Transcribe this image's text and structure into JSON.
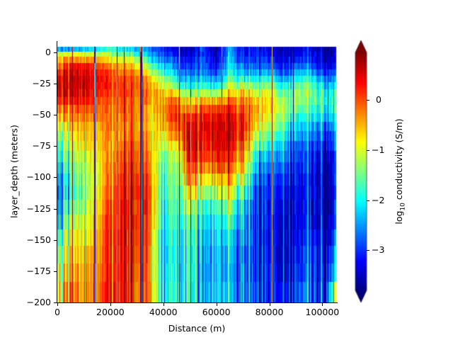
{
  "figure": {
    "background": "#ffffff"
  },
  "axes": {
    "xlabel": "Distance (m)",
    "ylabel": "layer_depth (meters)",
    "xlim": [
      0,
      105500
    ],
    "ylim": [
      -200,
      9
    ],
    "xticks": [
      {
        "value": 0,
        "label": "0"
      },
      {
        "value": 20000,
        "label": "20000"
      },
      {
        "value": 40000,
        "label": "40000"
      },
      {
        "value": 60000,
        "label": "60000"
      },
      {
        "value": 80000,
        "label": "80000"
      },
      {
        "value": 100000,
        "label": "100000"
      }
    ],
    "yticks": [
      {
        "value": 0,
        "label": "0"
      },
      {
        "value": -25,
        "label": "−25"
      },
      {
        "value": -50,
        "label": "−50"
      },
      {
        "value": -75,
        "label": "−75"
      },
      {
        "value": -100,
        "label": "−100"
      },
      {
        "value": -125,
        "label": "−125"
      },
      {
        "value": -150,
        "label": "−150"
      },
      {
        "value": -175,
        "label": "−175"
      },
      {
        "value": -200,
        "label": "−200"
      }
    ]
  },
  "colorbar": {
    "label": "log₁₀ conductivity (S/m)",
    "label_parts": {
      "pre": "log",
      "sub": "10",
      "post": " conductivity (S/m)"
    },
    "colormap": "jet",
    "vmin": -3.8,
    "vmax": 0.95,
    "extend": "both",
    "ticks": [
      {
        "value": 0,
        "label": "0"
      },
      {
        "value": -1,
        "label": "−1"
      },
      {
        "value": -2,
        "label": "−2"
      },
      {
        "value": -3,
        "label": "−3"
      }
    ],
    "under_color": "#00007f",
    "over_color": "#7f0000"
  },
  "chart_data": {
    "type": "heatmap",
    "title": "",
    "xlabel": "Distance (m)",
    "ylabel": "layer_depth (meters)",
    "colorbar_label": "log10 conductivity (S/m)",
    "xlim": [
      0,
      105500
    ],
    "ylim": [
      -200,
      9
    ],
    "clim": [
      -3.8,
      0.95
    ],
    "grid": false,
    "layer_tops_m": [
      4,
      0,
      -4,
      -9,
      -14,
      -19,
      -24,
      -30,
      -36,
      -42,
      -49,
      -56,
      -63,
      -71,
      -79,
      -88,
      -97,
      -107,
      -118,
      -130,
      -142,
      -155,
      -169,
      -184,
      -200
    ],
    "profile_x_m": [
      0,
      5000,
      10000,
      15000,
      20000,
      25000,
      30000,
      35000,
      40000,
      45000,
      50000,
      55000,
      60000,
      65000,
      70000,
      75000,
      80000,
      85000,
      90000,
      95000,
      100000,
      105000
    ],
    "profile_log10_sigma": [
      [
        -2.6,
        -1.2,
        -0.6,
        -0.3,
        0.1,
        0.3,
        0.4,
        0.3,
        0.0,
        -0.4,
        -0.8,
        -1.3,
        -1.7,
        -2.0,
        -2.3,
        -2.6,
        -2.8,
        -2.9,
        -2.8,
        -2.6,
        -2.2,
        -1.8,
        -1.5,
        -1.3
      ],
      [
        -2.4,
        -0.9,
        -0.2,
        0.3,
        0.5,
        0.6,
        0.6,
        0.5,
        0.3,
        0.0,
        -0.3,
        -0.6,
        -0.9,
        -1.1,
        -1.3,
        -1.5,
        -1.7,
        -1.8,
        -1.6,
        -1.2,
        -0.9,
        -0.6,
        -0.4,
        -0.2
      ],
      [
        -2.2,
        -1.0,
        -0.3,
        0.4,
        0.6,
        0.7,
        0.7,
        0.6,
        0.4,
        0.1,
        -0.1,
        -0.3,
        -0.5,
        -0.7,
        -0.9,
        -1.1,
        -1.2,
        -1.3,
        -1.1,
        -0.9,
        -0.7,
        -0.5,
        -0.3,
        -0.2
      ],
      [
        -2.0,
        -1.1,
        -0.4,
        0.2,
        0.4,
        0.5,
        0.4,
        0.3,
        0.1,
        -0.1,
        -0.2,
        -0.4,
        -0.5,
        -0.6,
        -0.7,
        -0.8,
        -0.8,
        -0.7,
        -0.6,
        -0.5,
        -0.4,
        -0.3,
        -0.2,
        -0.1
      ],
      [
        -1.8,
        -1.3,
        -0.8,
        -0.3,
        0.0,
        0.1,
        0.1,
        0.0,
        -0.1,
        -0.2,
        -0.3,
        -0.3,
        -0.4,
        -0.4,
        -0.4,
        -0.3,
        -0.2,
        -0.1,
        0.0,
        0.1,
        0.2,
        0.2,
        0.2,
        0.3
      ],
      [
        -2.1,
        -1.6,
        -1.0,
        -0.5,
        -0.2,
        0.0,
        0.1,
        0.1,
        0.0,
        -0.1,
        -0.2,
        -0.2,
        -0.2,
        -0.1,
        0.0,
        0.1,
        0.2,
        0.3,
        0.4,
        0.4,
        0.4,
        0.4,
        0.4,
        0.3
      ],
      [
        -2.3,
        -1.8,
        -1.2,
        -0.7,
        -0.3,
        -0.1,
        0.0,
        0.0,
        -0.1,
        -0.2,
        -0.2,
        -0.2,
        -0.1,
        0.0,
        0.1,
        0.2,
        0.3,
        0.4,
        0.4,
        0.4,
        0.3,
        0.3,
        0.2,
        0.1
      ],
      [
        -2.6,
        -2.4,
        -2.0,
        -1.5,
        -1.0,
        -0.6,
        -0.4,
        -0.3,
        -0.4,
        -0.6,
        -0.7,
        -0.7,
        -0.6,
        -0.5,
        -0.3,
        -0.2,
        -0.1,
        0.0,
        0.0,
        -0.1,
        -0.2,
        -0.3,
        -0.4,
        -0.3
      ],
      [
        -3.0,
        -2.8,
        -2.5,
        -2.1,
        -1.7,
        -1.2,
        -0.8,
        -0.4,
        -0.2,
        -0.1,
        -0.2,
        -0.4,
        -0.7,
        -1.0,
        -1.3,
        -1.5,
        -1.6,
        -1.7,
        -1.8,
        -1.9,
        -2.0,
        -2.0,
        -2.0,
        -1.9
      ],
      [
        -3.4,
        -3.2,
        -3.0,
        -2.7,
        -2.4,
        -2.0,
        -1.5,
        -0.8,
        -0.2,
        0.1,
        0.2,
        0.0,
        -0.3,
        -0.8,
        -1.2,
        -1.4,
        -1.5,
        -1.6,
        -1.7,
        -1.8,
        -1.9,
        -2.0,
        -2.0,
        -1.9
      ],
      [
        -3.6,
        -3.5,
        -3.3,
        -3.1,
        -2.8,
        -2.5,
        -2.2,
        -1.6,
        -1.0,
        -0.5,
        0.1,
        0.4,
        0.5,
        0.5,
        0.3,
        0.0,
        -0.4,
        -0.9,
        -1.4,
        -1.7,
        -1.9,
        -2.0,
        -2.0,
        -2.0
      ],
      [
        -2.8,
        -2.8,
        -2.7,
        -2.6,
        -2.4,
        -2.1,
        -1.6,
        -1.0,
        -0.3,
        0.2,
        0.5,
        0.6,
        0.6,
        0.5,
        0.3,
        -0.1,
        -0.6,
        -1.1,
        -1.6,
        -1.9,
        -2.1,
        -2.2,
        -2.2,
        -2.1
      ],
      [
        -3.6,
        -3.5,
        -3.4,
        -3.2,
        -2.9,
        -2.5,
        -2.0,
        -1.2,
        -0.4,
        0.2,
        0.5,
        0.7,
        0.7,
        0.6,
        0.4,
        0.0,
        -0.5,
        -1.0,
        -1.5,
        -1.8,
        -2.0,
        -2.1,
        -2.1,
        -2.0
      ],
      [
        -2.4,
        -2.4,
        -2.3,
        -2.1,
        -1.9,
        -1.6,
        -1.2,
        -0.7,
        -0.2,
        0.2,
        0.4,
        0.5,
        0.5,
        0.4,
        0.2,
        -0.1,
        -0.5,
        -1.0,
        -1.5,
        -1.9,
        -2.2,
        -2.4,
        -2.5,
        -2.4
      ],
      [
        -3.3,
        -3.2,
        -3.0,
        -2.7,
        -2.3,
        -1.8,
        -1.2,
        -0.6,
        -0.2,
        0.1,
        0.2,
        0.3,
        0.2,
        0.0,
        -0.3,
        -0.7,
        -1.2,
        -1.7,
        -2.1,
        -2.4,
        -2.6,
        -2.7,
        -2.7,
        -2.6
      ],
      [
        -3.1,
        -3.0,
        -2.9,
        -2.7,
        -2.4,
        -2.0,
        -1.5,
        -1.0,
        -0.6,
        -0.4,
        -0.5,
        -0.7,
        -1.1,
        -1.5,
        -1.9,
        -2.3,
        -2.6,
        -2.8,
        -2.9,
        -3.0,
        -3.0,
        -3.0,
        -2.9,
        -2.8
      ],
      [
        -3.3,
        -3.2,
        -3.0,
        -2.7,
        -2.3,
        -1.8,
        -1.3,
        -0.9,
        -0.7,
        -0.7,
        -0.9,
        -1.2,
        -1.6,
        -2.0,
        -2.4,
        -2.7,
        -2.9,
        -3.0,
        -3.1,
        -3.1,
        -3.1,
        -3.1,
        -3.0,
        -3.0
      ],
      [
        -3.5,
        -3.4,
        -3.3,
        -3.1,
        -2.8,
        -2.4,
        -1.9,
        -1.5,
        -1.2,
        -1.1,
        -1.2,
        -1.4,
        -1.7,
        -2.0,
        -2.3,
        -2.6,
        -2.8,
        -3.0,
        -3.1,
        -3.2,
        -3.2,
        -3.2,
        -3.1,
        -3.0
      ],
      [
        -3.4,
        -3.3,
        -3.1,
        -2.8,
        -2.4,
        -2.0,
        -1.6,
        -1.4,
        -1.4,
        -1.6,
        -1.9,
        -2.2,
        -2.5,
        -2.8,
        -3.0,
        -3.2,
        -3.3,
        -3.4,
        -3.4,
        -3.4,
        -3.4,
        -3.3,
        -3.2,
        -3.0
      ],
      [
        -3.3,
        -3.2,
        -3.0,
        -2.7,
        -2.3,
        -1.9,
        -1.6,
        -1.5,
        -1.6,
        -1.8,
        -2.1,
        -2.4,
        -2.7,
        -2.9,
        -3.1,
        -3.2,
        -3.3,
        -3.3,
        -3.3,
        -3.2,
        -3.1,
        -3.0,
        -2.9,
        -2.8
      ],
      [
        -3.6,
        -3.5,
        -3.4,
        -3.2,
        -2.9,
        -2.5,
        -2.1,
        -1.8,
        -1.7,
        -1.8,
        -2.1,
        -2.5,
        -2.8,
        -3.1,
        -3.3,
        -3.4,
        -3.5,
        -3.5,
        -3.5,
        -3.5,
        -3.4,
        -3.3,
        -3.2,
        -3.1
      ],
      [
        -3.7,
        -3.6,
        -3.5,
        -3.3,
        -3.0,
        -2.7,
        -2.3,
        -2.0,
        -1.9,
        -2.0,
        -2.3,
        -2.6,
        -2.9,
        -3.1,
        -3.3,
        -3.4,
        -3.5,
        -3.5,
        -3.4,
        -3.3,
        -3.1,
        -2.8,
        -2.4,
        -1.6
      ]
    ],
    "notes": "Layered electromagnetic conductivity section; high conductivity (red, up to ~0.9) in 0–75 m depth near 0–50 km and 50–80 km at 40–80 m depth; resistive (blue, ~-3.5) near surface 35–50 km and below 100 m east of 60 km."
  }
}
